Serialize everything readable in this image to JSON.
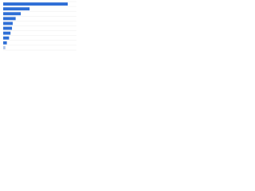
{
  "chart_data": {
    "type": "bar",
    "orientation": "horizontal",
    "categories": [
      null,
      null,
      null,
      null,
      null,
      null,
      null,
      null,
      null,
      null
    ],
    "values": [
      88,
      36,
      24,
      17,
      13,
      12,
      10,
      8,
      5,
      3
    ],
    "colors": [
      "#2f6fd6",
      "#2f6fd6",
      "#2f6fd6",
      "#2f6fd6",
      "#2f6fd6",
      "#2f6fd6",
      "#2f6fd6",
      "#2f6fd6",
      "#2f6fd6",
      "#b3c6e6"
    ],
    "xlim": [
      0,
      100
    ],
    "grid": true
  }
}
